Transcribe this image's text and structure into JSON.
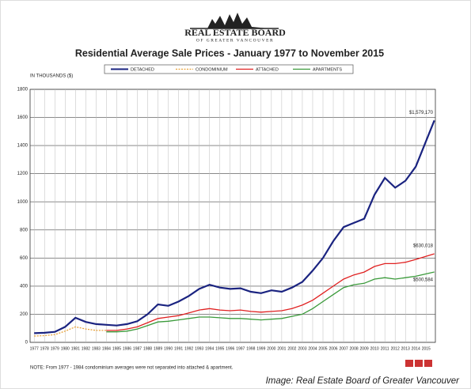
{
  "header": {
    "org": "REAL ESTATE BOARD",
    "org_sub": "OF GREATER VANCOUVER"
  },
  "chart_data": {
    "type": "line",
    "title": "Residential Average Sale Prices  -  January 1977 to November 2015",
    "y_label": "IN THOUSANDS ($)",
    "note": "NOTE:  From 1977 - 1984 condominium averages were not separated into attached & apartment.",
    "x": [
      1977,
      1978,
      1979,
      1980,
      1981,
      1982,
      1983,
      1984,
      1985,
      1986,
      1987,
      1988,
      1989,
      1990,
      1991,
      1992,
      1993,
      1994,
      1995,
      1996,
      1997,
      1998,
      1999,
      2000,
      2001,
      2002,
      2003,
      2004,
      2005,
      2006,
      2007,
      2008,
      2009,
      2010,
      2011,
      2012,
      2013,
      2014,
      2015.8
    ],
    "xlim": [
      1976.6,
      2015.9
    ],
    "xticks": [
      1977,
      1978,
      1979,
      1980,
      1981,
      1982,
      1983,
      1984,
      1985,
      1986,
      1987,
      1988,
      1989,
      1990,
      1991,
      1992,
      1993,
      1994,
      1995,
      1996,
      1997,
      1998,
      1999,
      2000,
      2001,
      2002,
      2003,
      2004,
      2005,
      2006,
      2007,
      2008,
      2009,
      2010,
      2011,
      2012,
      2013,
      2014,
      2015
    ],
    "ylim": [
      0,
      1800
    ],
    "yticks": [
      0,
      200,
      400,
      600,
      800,
      1000,
      1200,
      1400,
      1600,
      1800
    ],
    "grid": true,
    "legend": "top",
    "series": [
      {
        "name": "DETACHED",
        "color": "#1a2380",
        "dash": false,
        "values": [
          65,
          68,
          75,
          110,
          175,
          145,
          130,
          125,
          120,
          130,
          150,
          200,
          270,
          260,
          290,
          330,
          380,
          410,
          390,
          380,
          385,
          360,
          350,
          370,
          360,
          390,
          430,
          510,
          600,
          720,
          820,
          850,
          880,
          1050,
          1170,
          1100,
          1150,
          1250,
          1579.17
        ],
        "value_labels": [
          null,
          null,
          null,
          null,
          null,
          null,
          null,
          null,
          null,
          null,
          null,
          null,
          null,
          null,
          null,
          null,
          null,
          null,
          null,
          null,
          null,
          null,
          null,
          null,
          null,
          null,
          null,
          null,
          null,
          null,
          null,
          null,
          null,
          null,
          null,
          null,
          null,
          null,
          "$1,579,170"
        ]
      },
      {
        "name": "CONDOMINIUM",
        "color": "#e8a23a",
        "dash": true,
        "values": [
          45,
          48,
          55,
          80,
          110,
          95,
          85,
          85,
          null,
          null,
          null,
          null,
          null,
          null,
          null,
          null,
          null,
          null,
          null,
          null,
          null,
          null,
          null,
          null,
          null,
          null,
          null,
          null,
          null,
          null,
          null,
          null,
          null,
          null,
          null,
          null,
          null,
          null,
          null
        ]
      },
      {
        "name": "ATTACHED",
        "color": "#e02020",
        "dash": false,
        "values": [
          null,
          null,
          null,
          null,
          null,
          null,
          null,
          85,
          85,
          95,
          110,
          140,
          170,
          180,
          190,
          210,
          230,
          240,
          230,
          225,
          230,
          220,
          215,
          220,
          225,
          240,
          265,
          300,
          350,
          400,
          450,
          480,
          500,
          540,
          560,
          560,
          570,
          590,
          630.018
        ],
        "value_labels": [
          null,
          null,
          null,
          null,
          null,
          null,
          null,
          null,
          null,
          null,
          null,
          null,
          null,
          null,
          null,
          null,
          null,
          null,
          null,
          null,
          null,
          null,
          null,
          null,
          null,
          null,
          null,
          null,
          null,
          null,
          null,
          null,
          null,
          null,
          null,
          null,
          null,
          null,
          "$630,018"
        ]
      },
      {
        "name": "APARTMENTS",
        "color": "#3a9a3a",
        "dash": false,
        "values": [
          null,
          null,
          null,
          null,
          null,
          null,
          null,
          75,
          75,
          80,
          95,
          120,
          145,
          150,
          160,
          170,
          180,
          180,
          175,
          170,
          170,
          165,
          160,
          165,
          170,
          185,
          200,
          240,
          290,
          340,
          390,
          410,
          420,
          450,
          460,
          450,
          460,
          470,
          500.584
        ],
        "value_labels": [
          null,
          null,
          null,
          null,
          null,
          null,
          null,
          null,
          null,
          null,
          null,
          null,
          null,
          null,
          null,
          null,
          null,
          null,
          null,
          null,
          null,
          null,
          null,
          null,
          null,
          null,
          null,
          null,
          null,
          null,
          null,
          null,
          null,
          null,
          null,
          null,
          null,
          null,
          "$500,584"
        ]
      }
    ]
  },
  "caption": "Image: Real Estate Board of Greater Vancouver"
}
